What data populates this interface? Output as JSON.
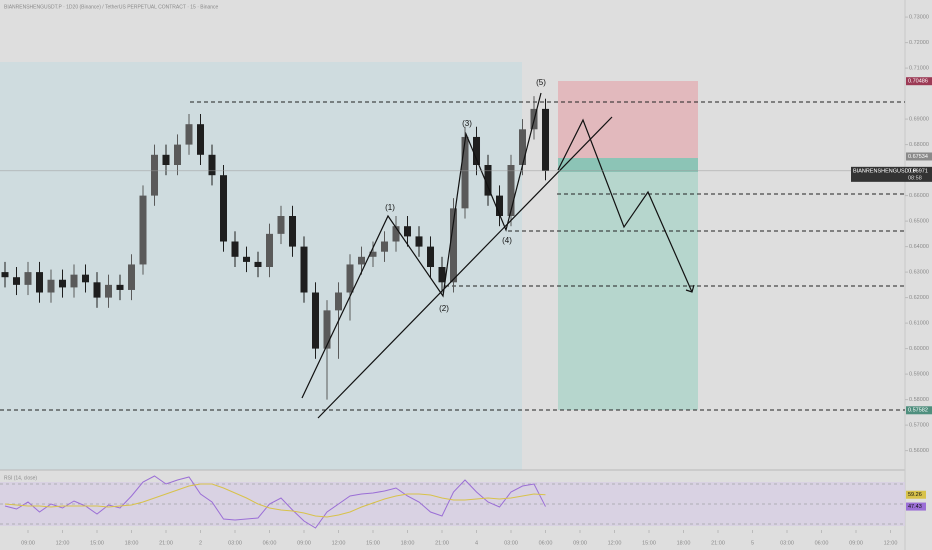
{
  "chart_data": {
    "type": "candlestick",
    "title": "BIANRENSHENGUSDT.P · 1D20 (Binance) / TetherUS PERPETUAL CONTRACT · 15 · Binance",
    "x": [
      -2,
      -1,
      0,
      1,
      2,
      3,
      4,
      5,
      6,
      7,
      8,
      9,
      10,
      11,
      12,
      13,
      14,
      15,
      16,
      17,
      18,
      19,
      20,
      21,
      22,
      23,
      24,
      25,
      26,
      27,
      28,
      29,
      30,
      31,
      32,
      33,
      34,
      35,
      36,
      37,
      38,
      39,
      40,
      41,
      42,
      43,
      44,
      45
    ],
    "open": [
      0.63,
      0.628,
      0.625,
      0.63,
      0.622,
      0.627,
      0.624,
      0.629,
      0.626,
      0.62,
      0.625,
      0.623,
      0.633,
      0.66,
      0.676,
      0.672,
      0.68,
      0.688,
      0.676,
      0.668,
      0.642,
      0.636,
      0.634,
      0.632,
      0.645,
      0.652,
      0.64,
      0.622,
      0.6,
      0.615,
      0.622,
      0.633,
      0.636,
      0.638,
      0.642,
      0.648,
      0.644,
      0.64,
      0.632,
      0.626,
      0.655,
      0.683,
      0.672,
      0.66,
      0.652,
      0.672,
      0.686,
      0.694
    ],
    "high": [
      0.634,
      0.632,
      0.634,
      0.634,
      0.631,
      0.631,
      0.633,
      0.633,
      0.63,
      0.629,
      0.629,
      0.637,
      0.664,
      0.68,
      0.68,
      0.684,
      0.692,
      0.692,
      0.68,
      0.672,
      0.646,
      0.64,
      0.638,
      0.649,
      0.656,
      0.656,
      0.644,
      0.626,
      0.619,
      0.626,
      0.637,
      0.64,
      0.642,
      0.646,
      0.652,
      0.652,
      0.648,
      0.644,
      0.636,
      0.659,
      0.687,
      0.687,
      0.676,
      0.664,
      0.676,
      0.69,
      0.699,
      0.698
    ],
    "low": [
      0.624,
      0.621,
      0.621,
      0.618,
      0.618,
      0.62,
      0.62,
      0.622,
      0.616,
      0.616,
      0.619,
      0.619,
      0.629,
      0.656,
      0.668,
      0.668,
      0.676,
      0.672,
      0.664,
      0.638,
      0.632,
      0.63,
      0.628,
      0.628,
      0.641,
      0.636,
      0.618,
      0.596,
      0.58,
      0.596,
      0.611,
      0.629,
      0.632,
      0.634,
      0.638,
      0.64,
      0.636,
      0.628,
      0.622,
      0.622,
      0.651,
      0.668,
      0.656,
      0.648,
      0.648,
      0.668,
      0.682,
      0.666
    ],
    "close": [
      0.628,
      0.625,
      0.63,
      0.622,
      0.627,
      0.624,
      0.629,
      0.626,
      0.62,
      0.625,
      0.623,
      0.633,
      0.66,
      0.676,
      0.672,
      0.68,
      0.688,
      0.676,
      0.668,
      0.642,
      0.636,
      0.634,
      0.632,
      0.645,
      0.652,
      0.64,
      0.622,
      0.6,
      0.615,
      0.622,
      0.633,
      0.636,
      0.638,
      0.642,
      0.648,
      0.644,
      0.64,
      0.632,
      0.626,
      0.655,
      0.683,
      0.672,
      0.66,
      0.652,
      0.672,
      0.686,
      0.694,
      0.66971
    ],
    "up_color": "#5a5a5a",
    "down_color": "#1e1e1e",
    "xlim": [
      -2.435,
      76.26
    ],
    "ylim": [
      0.5524,
      0.7367
    ],
    "xticks": [
      {
        "value": 0,
        "label": "09:00"
      },
      {
        "value": 3,
        "label": "12:00"
      },
      {
        "value": 6,
        "label": "15:00"
      },
      {
        "value": 9,
        "label": "18:00"
      },
      {
        "value": 12,
        "label": "21:00"
      },
      {
        "value": 15,
        "label": "2"
      },
      {
        "value": 18,
        "label": "03:00"
      },
      {
        "value": 21,
        "label": "06:00"
      },
      {
        "value": 24,
        "label": "09:00"
      },
      {
        "value": 27,
        "label": "12:00"
      },
      {
        "value": 30,
        "label": "15:00"
      },
      {
        "value": 33,
        "label": "18:00"
      },
      {
        "value": 36,
        "label": "21:00"
      },
      {
        "value": 39,
        "label": "4"
      },
      {
        "value": 42,
        "label": "03:00"
      },
      {
        "value": 45,
        "label": "06:00"
      },
      {
        "value": 48,
        "label": "09:00"
      },
      {
        "value": 51,
        "label": "12:00"
      },
      {
        "value": 54,
        "label": "15:00"
      },
      {
        "value": 57,
        "label": "18:00"
      },
      {
        "value": 60,
        "label": "21:00"
      },
      {
        "value": 63,
        "label": "5"
      },
      {
        "value": 66,
        "label": "03:00"
      },
      {
        "value": 69,
        "label": "06:00"
      },
      {
        "value": 72,
        "label": "09:00"
      },
      {
        "value": 75,
        "label": "12:00"
      }
    ],
    "yticks": [
      {
        "value": 0.73,
        "label": "0.73000"
      },
      {
        "value": 0.72,
        "label": "0.72000"
      },
      {
        "value": 0.71,
        "label": "0.71000"
      },
      {
        "value": 0.69,
        "label": "0.69000"
      },
      {
        "value": 0.68,
        "label": "0.68000"
      },
      {
        "value": 0.66,
        "label": "0.66000"
      },
      {
        "value": 0.65,
        "label": "0.65000"
      },
      {
        "value": 0.64,
        "label": "0.64000"
      },
      {
        "value": 0.63,
        "label": "0.63000"
      },
      {
        "value": 0.62,
        "label": "0.62000"
      },
      {
        "value": 0.61,
        "label": "0.61000"
      },
      {
        "value": 0.6,
        "label": "0.60000"
      },
      {
        "value": 0.59,
        "label": "0.59000"
      },
      {
        "value": 0.58,
        "label": "0.58000"
      },
      {
        "value": 0.57,
        "label": "0.57000"
      },
      {
        "value": 0.56,
        "label": "0.56000"
      }
    ],
    "price_tags": [
      {
        "value": 0.70486,
        "color": "#9c3a55"
      },
      {
        "value": 0.67534,
        "color": "#8a8a8a"
      },
      {
        "value": 0.57582,
        "color": "#4f8f7e"
      }
    ],
    "symbol_tag": "BIANRENSHENGUSDT.P",
    "countdown": "08:58",
    "wave_labels": [
      "(1)",
      "(2)",
      "(3)",
      "(4)",
      "(5)"
    ],
    "rsi": {
      "title": "RSI (14, close)",
      "ylim": [
        24,
        82
      ],
      "bands": [
        70,
        50,
        30
      ],
      "series": [
        {
          "name": "RSI",
          "color": "#9b6fd6",
          "values": [
            48,
            45,
            52,
            42,
            50,
            46,
            53,
            48,
            40,
            49,
            46,
            58,
            72,
            78,
            70,
            74,
            77,
            60,
            52,
            35,
            34,
            35,
            36,
            50,
            56,
            44,
            33,
            26,
            42,
            50,
            58,
            60,
            61,
            63,
            66,
            58,
            52,
            42,
            38,
            62,
            74,
            62,
            52,
            47,
            62,
            68,
            70,
            47.43
          ]
        },
        {
          "name": "RSI MA",
          "color": "#d8c24a",
          "values": [
            50,
            49,
            48,
            48,
            47,
            48,
            48,
            48,
            48,
            47,
            48,
            49,
            52,
            56,
            60,
            64,
            68,
            70,
            70,
            66,
            61,
            56,
            50,
            46,
            44,
            43,
            41,
            38,
            37,
            39,
            42,
            47,
            51,
            55,
            58,
            60,
            60,
            59,
            56,
            54,
            54,
            55,
            56,
            55,
            56,
            58,
            60,
            59.26
          ]
        }
      ]
    }
  }
}
